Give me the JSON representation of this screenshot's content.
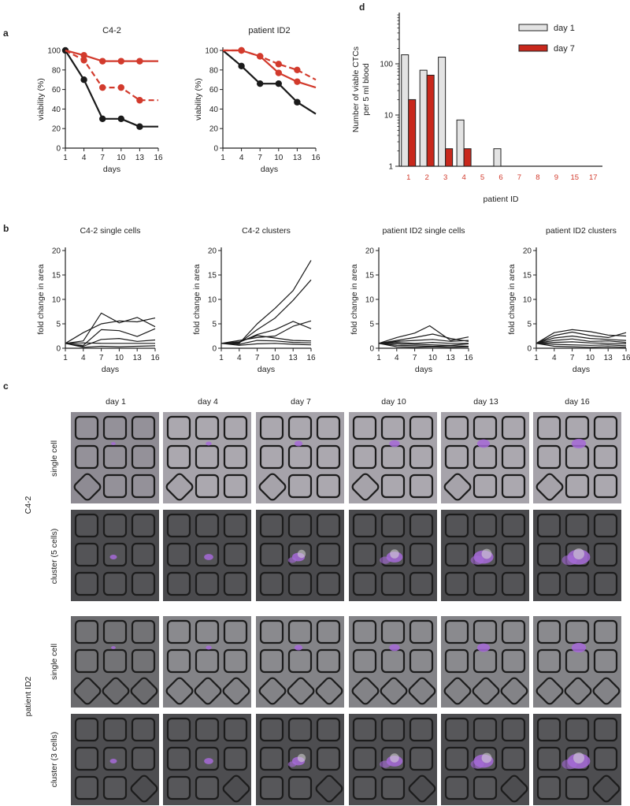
{
  "panel_labels": {
    "a": "a",
    "b": "b",
    "c": "c",
    "d": "d"
  },
  "colors": {
    "black": "#1a1a1a",
    "red": "#d23a2c",
    "gray_bar": "#e3e3e3",
    "dark_red_bar": "#c8281c",
    "purple": "#a66ad8"
  },
  "panel_a": {
    "charts": [
      {
        "title": "C4-2",
        "x_ticks": [
          "1",
          "4",
          "7",
          "10",
          "13",
          "16"
        ],
        "y_ticks": [
          "0",
          "20",
          "40",
          "60",
          "80",
          "100"
        ]
      },
      {
        "title": "patient ID2",
        "x_ticks": [
          "1",
          "4",
          "7",
          "10",
          "13",
          "16"
        ],
        "y_ticks": [
          "0",
          "20",
          "40",
          "60",
          "80",
          "100"
        ]
      }
    ]
  },
  "panel_b": {
    "titles": [
      "C4-2 single cells",
      "C4-2 clusters",
      "patient ID2 single cells",
      "patient ID2 clusters"
    ],
    "x_ticks": [
      "1",
      "4",
      "7",
      "10",
      "13",
      "16"
    ],
    "y_ticks": [
      "0",
      "5",
      "10",
      "15",
      "20"
    ]
  },
  "panel_d": {
    "y_ticks": [
      "1",
      "10",
      "100"
    ]
  },
  "panel_c": {
    "columns": [
      "day 1",
      "day 4",
      "day 7",
      "day 10",
      "day 13",
      "day 16"
    ],
    "group_labels": [
      "C4-2",
      "patient ID2"
    ],
    "row_labels": [
      "single cell",
      "cluster (5 cells)",
      "single cell",
      "cluster (3 cells)"
    ]
  },
  "chart_data": [
    {
      "type": "line",
      "title": "C4-2",
      "xlabel": "days",
      "ylabel": "viability (%)",
      "xlim": [
        1,
        16
      ],
      "ylim": [
        0,
        100
      ],
      "series": [
        {
          "name": "black",
          "style": "solid",
          "color": "#1a1a1a",
          "x": [
            1,
            4,
            7,
            10,
            13,
            16
          ],
          "y": [
            100,
            70,
            30,
            30,
            22,
            22
          ],
          "markers": [
            true,
            true,
            true,
            true,
            true,
            false
          ]
        },
        {
          "name": "red dashed",
          "style": "dashed",
          "color": "#d23a2c",
          "x": [
            1,
            4,
            7,
            10,
            13,
            16
          ],
          "y": [
            100,
            90,
            62,
            62,
            49,
            49
          ],
          "markers": [
            false,
            true,
            true,
            true,
            true,
            false
          ]
        },
        {
          "name": "red solid",
          "style": "solid",
          "color": "#d23a2c",
          "x": [
            1,
            4,
            7,
            10,
            13,
            16
          ],
          "y": [
            100,
            95,
            89,
            89,
            89,
            89
          ],
          "markers": [
            false,
            true,
            true,
            true,
            true,
            false
          ]
        }
      ]
    },
    {
      "type": "line",
      "title": "patient ID2",
      "xlabel": "days",
      "ylabel": "viability (%)",
      "xlim": [
        1,
        16
      ],
      "ylim": [
        0,
        100
      ],
      "series": [
        {
          "name": "black",
          "style": "solid",
          "color": "#1a1a1a",
          "x": [
            1,
            4,
            7,
            10,
            13,
            16
          ],
          "y": [
            100,
            84,
            66,
            66,
            47,
            35
          ],
          "markers": [
            false,
            true,
            true,
            true,
            true,
            false
          ]
        },
        {
          "name": "red dashed",
          "style": "dashed",
          "color": "#d23a2c",
          "x": [
            1,
            4,
            7,
            10,
            13,
            16
          ],
          "y": [
            100,
            100,
            94,
            86,
            80,
            70
          ],
          "markers": [
            false,
            true,
            true,
            true,
            true,
            false
          ]
        },
        {
          "name": "red solid",
          "style": "solid",
          "color": "#d23a2c",
          "x": [
            1,
            4,
            7,
            10,
            13,
            16
          ],
          "y": [
            100,
            100,
            94,
            77,
            68,
            62
          ],
          "markers": [
            false,
            true,
            true,
            true,
            true,
            false
          ]
        }
      ]
    },
    {
      "type": "line",
      "title": "C4-2 single cells",
      "xlabel": "days",
      "ylabel": "fold change in area",
      "xlim": [
        1,
        16
      ],
      "ylim": [
        0,
        20
      ],
      "series": [
        {
          "name": "s1",
          "x": [
            1,
            4,
            7,
            10,
            13,
            16
          ],
          "y": [
            1,
            1.5,
            7.2,
            5.2,
            6.3,
            4.4
          ]
        },
        {
          "name": "s2",
          "x": [
            1,
            4,
            7,
            10,
            13,
            16
          ],
          "y": [
            1,
            3.2,
            5,
            5.6,
            5.4,
            6.2
          ]
        },
        {
          "name": "s3",
          "x": [
            1,
            4,
            7,
            10,
            13,
            16
          ],
          "y": [
            1,
            0.6,
            3.8,
            3.6,
            2.4,
            4
          ]
        },
        {
          "name": "s4",
          "x": [
            1,
            4,
            7,
            10,
            13,
            16
          ],
          "y": [
            1,
            0.4,
            1.8,
            2,
            1.4,
            1.7
          ]
        },
        {
          "name": "s5",
          "x": [
            1,
            4,
            7,
            10,
            13,
            16
          ],
          "y": [
            1,
            1.1,
            1,
            1,
            1,
            1
          ]
        },
        {
          "name": "s6",
          "x": [
            1,
            4,
            7,
            10,
            13,
            16
          ],
          "y": [
            1,
            0.2,
            0.4,
            0.3,
            0.4,
            0.5
          ]
        }
      ]
    },
    {
      "type": "line",
      "title": "C4-2 clusters",
      "xlabel": "days",
      "ylabel": "fold change in area",
      "xlim": [
        1,
        16
      ],
      "ylim": [
        0,
        20
      ],
      "series": [
        {
          "name": "s1",
          "x": [
            1,
            4,
            7,
            10,
            13,
            16
          ],
          "y": [
            1,
            1,
            5,
            8.2,
            11.8,
            18
          ]
        },
        {
          "name": "s2",
          "x": [
            1,
            4,
            7,
            10,
            13,
            16
          ],
          "y": [
            1,
            1.1,
            3.8,
            6.2,
            9.8,
            14
          ]
        },
        {
          "name": "s3",
          "x": [
            1,
            4,
            7,
            10,
            13,
            16
          ],
          "y": [
            1,
            1.2,
            2.8,
            3.8,
            5.5,
            4
          ]
        },
        {
          "name": "s4",
          "x": [
            1,
            4,
            7,
            10,
            13,
            16
          ],
          "y": [
            1,
            1.6,
            2.2,
            2.5,
            4.5,
            5.6
          ]
        },
        {
          "name": "s5",
          "x": [
            1,
            4,
            7,
            10,
            13,
            16
          ],
          "y": [
            1,
            1.3,
            2.6,
            2.1,
            1.6,
            1.5
          ]
        },
        {
          "name": "s6",
          "x": [
            1,
            4,
            7,
            10,
            13,
            16
          ],
          "y": [
            1,
            0.8,
            1.6,
            1.5,
            1.2,
            1.1
          ]
        },
        {
          "name": "s7",
          "x": [
            1,
            4,
            7,
            10,
            13,
            16
          ],
          "y": [
            1,
            0.6,
            0.9,
            1,
            0.8,
            0.7
          ]
        }
      ]
    },
    {
      "type": "line",
      "title": "patient ID2 single cells",
      "xlabel": "days",
      "ylabel": "fold change in area",
      "xlim": [
        1,
        16
      ],
      "ylim": [
        0,
        20
      ],
      "series": [
        {
          "name": "s1",
          "x": [
            1,
            4,
            7,
            9.5,
            13,
            16
          ],
          "y": [
            1,
            2.2,
            3.1,
            4.6,
            1.6,
            2.3
          ]
        },
        {
          "name": "s2",
          "x": [
            1,
            4,
            7,
            10,
            13,
            16
          ],
          "y": [
            1,
            1.6,
            2.2,
            2.9,
            2,
            1.4
          ]
        },
        {
          "name": "s3",
          "x": [
            1,
            4,
            7,
            10,
            13,
            16
          ],
          "y": [
            1,
            1.4,
            1.6,
            1.8,
            1.4,
            1.6
          ]
        },
        {
          "name": "s4",
          "x": [
            1,
            4,
            7,
            10,
            13,
            16
          ],
          "y": [
            1,
            1.2,
            1,
            1.2,
            1,
            1
          ]
        },
        {
          "name": "s5",
          "x": [
            1,
            4,
            7,
            10,
            13,
            16
          ],
          "y": [
            1,
            0.9,
            0.8,
            0.7,
            0.6,
            0.9
          ]
        },
        {
          "name": "s6",
          "x": [
            1,
            4,
            7,
            10,
            13,
            16
          ],
          "y": [
            1,
            0.6,
            0.5,
            0.4,
            0.5,
            0.4
          ]
        },
        {
          "name": "s7",
          "x": [
            1,
            4,
            7,
            10,
            13,
            16
          ],
          "y": [
            1,
            0.3,
            0.2,
            0.3,
            0.2,
            0.3
          ]
        }
      ]
    },
    {
      "type": "line",
      "title": "patient ID2 clusters",
      "xlabel": "days",
      "ylabel": "fold change in area",
      "xlim": [
        1,
        16
      ],
      "ylim": [
        0,
        20
      ],
      "series": [
        {
          "name": "s1",
          "x": [
            1,
            4,
            7,
            10,
            13,
            16
          ],
          "y": [
            1,
            3.2,
            3.8,
            3.4,
            2.7,
            2.5
          ]
        },
        {
          "name": "s2",
          "x": [
            1,
            4,
            7,
            10,
            13,
            16
          ],
          "y": [
            1,
            2.6,
            3.3,
            2.6,
            2.2,
            3.2
          ]
        },
        {
          "name": "s3",
          "x": [
            1,
            4,
            7,
            10,
            13,
            16
          ],
          "y": [
            1,
            2.1,
            2.5,
            2,
            1.8,
            1.6
          ]
        },
        {
          "name": "s4",
          "x": [
            1,
            4,
            7,
            10,
            13,
            16
          ],
          "y": [
            1,
            1.6,
            1.9,
            1.4,
            1.5,
            1.2
          ]
        },
        {
          "name": "s5",
          "x": [
            1,
            4,
            7,
            10,
            13,
            16
          ],
          "y": [
            1,
            1.2,
            1.3,
            1.1,
            1,
            0.9
          ]
        },
        {
          "name": "s6",
          "x": [
            1,
            4,
            7,
            10,
            13,
            16
          ],
          "y": [
            1,
            0.8,
            0.7,
            0.6,
            0.7,
            0.5
          ]
        },
        {
          "name": "s7",
          "x": [
            1,
            4,
            7,
            10,
            13,
            16
          ],
          "y": [
            1,
            0.4,
            0.3,
            0.2,
            0.3,
            0.2
          ]
        }
      ]
    },
    {
      "type": "bar",
      "title": "",
      "xlabel": "patient ID",
      "ylabel": "Number of viable CTCs per 5 ml blood",
      "yscale": "log",
      "ylim": [
        1,
        1000
      ],
      "categories": [
        "1",
        "2",
        "3",
        "4",
        "5",
        "6",
        "7",
        "8",
        "9",
        "15",
        "17"
      ],
      "series": [
        {
          "name": "day 1",
          "color": "#e3e3e3",
          "values": [
            150,
            75,
            135,
            8,
            null,
            2.2,
            null,
            null,
            null,
            null,
            null
          ]
        },
        {
          "name": "day 7",
          "color": "#c8281c",
          "values": [
            20,
            60,
            2.2,
            2.2,
            null,
            null,
            null,
            null,
            null,
            null,
            null
          ]
        }
      ]
    }
  ]
}
